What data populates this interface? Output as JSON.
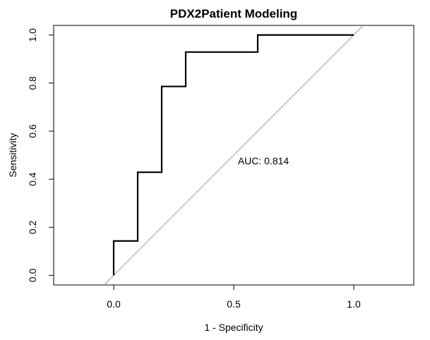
{
  "chart_data": {
    "type": "line",
    "title": "PDX2Patient Modeling",
    "xlabel": "1 - Specificity",
    "ylabel": "Sensitivity",
    "xlim": [
      -0.25,
      1.25
    ],
    "ylim": [
      -0.04,
      1.04
    ],
    "xticks": [
      0.0,
      0.5,
      1.0
    ],
    "xtick_labels": [
      "0.0",
      "0.5",
      "1.0"
    ],
    "yticks": [
      0.0,
      0.2,
      0.4,
      0.6,
      0.8,
      1.0
    ],
    "ytick_labels": [
      "0.0",
      "0.2",
      "0.4",
      "0.6",
      "0.8",
      "1.0"
    ],
    "grid": false,
    "series": [
      {
        "type": "step",
        "color": "#000000",
        "x": [
          0.0,
          0.0,
          0.1,
          0.1,
          0.2,
          0.2,
          0.3,
          0.3,
          0.6,
          0.6,
          1.0
        ],
        "y": [
          0.0,
          0.143,
          0.143,
          0.429,
          0.429,
          0.786,
          0.786,
          0.929,
          0.929,
          1.0,
          1.0
        ]
      },
      {
        "type": "reference",
        "color": "#a0a0a0",
        "x": [
          -0.04,
          1.04
        ],
        "y": [
          -0.04,
          1.04
        ]
      }
    ],
    "annotations": [
      {
        "text": "AUC: 0.814",
        "x": 0.5,
        "y": 0.48
      }
    ]
  }
}
